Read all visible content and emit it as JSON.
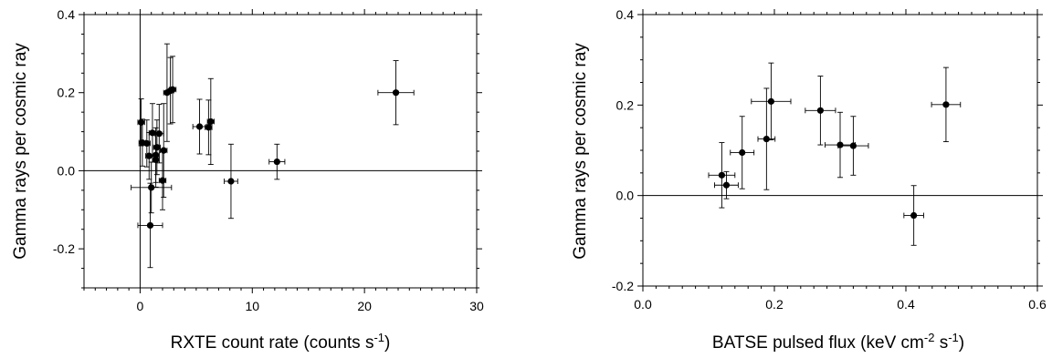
{
  "chart_data": [
    {
      "type": "scatter",
      "xlabel": "RXTE count rate (counts s-1)",
      "xlabel_parts": {
        "main": "RXTE count rate (counts s",
        "sup": "-1",
        "close": ")"
      },
      "ylabel": "Gamma rays per cosmic ray",
      "xlim": [
        -5,
        30
      ],
      "ylim": [
        -0.3,
        0.4
      ],
      "xticks": [
        0,
        10,
        20,
        30
      ],
      "xtick_labels": [
        "0",
        "10",
        "20",
        "30"
      ],
      "yticks": [
        -0.2,
        0.0,
        0.2,
        0.4
      ],
      "ytick_labels": [
        "-0.2",
        "0.0",
        "0.2",
        "0.4"
      ],
      "x_minor_step": 1,
      "y_minor_step": 0.05,
      "reference_lines": {
        "x": 0,
        "y": 0
      },
      "points": [
        {
          "x": 0.1,
          "y": 0.124,
          "xerr": 0.3,
          "yerr": 0.06
        },
        {
          "x": 0.2,
          "y": 0.072,
          "xerr": 0.3,
          "yerr": 0.06
        },
        {
          "x": 0.6,
          "y": 0.07,
          "xerr": 0.3,
          "yerr": 0.06
        },
        {
          "x": 0.8,
          "y": 0.038,
          "xerr": 0.3,
          "yerr": 0.06
        },
        {
          "x": 0.9,
          "y": -0.14,
          "xerr": 1.1,
          "yerr": 0.108
        },
        {
          "x": 1.0,
          "y": -0.043,
          "xerr": 1.8,
          "yerr": 0.065
        },
        {
          "x": 1.1,
          "y": 0.097,
          "xerr": 0.3,
          "yerr": 0.075
        },
        {
          "x": 1.4,
          "y": 0.028,
          "xerr": 0.3,
          "yerr": 0.07
        },
        {
          "x": 1.4,
          "y": 0.04,
          "xerr": 0.3,
          "yerr": 0.07
        },
        {
          "x": 1.5,
          "y": 0.06,
          "xerr": 0.3,
          "yerr": 0.07
        },
        {
          "x": 1.7,
          "y": 0.095,
          "xerr": 0.4,
          "yerr": 0.075
        },
        {
          "x": 2.0,
          "y": -0.025,
          "xerr": 0.3,
          "yerr": 0.075
        },
        {
          "x": 2.1,
          "y": 0.052,
          "xerr": 0.3,
          "yerr": 0.12
        },
        {
          "x": 2.4,
          "y": 0.2,
          "xerr": 0.3,
          "yerr": 0.125
        },
        {
          "x": 2.7,
          "y": 0.205,
          "xerr": 0.3,
          "yerr": 0.085
        },
        {
          "x": 2.9,
          "y": 0.208,
          "xerr": 0.3,
          "yerr": 0.085
        },
        {
          "x": 5.3,
          "y": 0.113,
          "xerr": 0.6,
          "yerr": 0.07
        },
        {
          "x": 6.1,
          "y": 0.111,
          "xerr": 0.3,
          "yerr": 0.07
        },
        {
          "x": 6.3,
          "y": 0.126,
          "xerr": 0.3,
          "yerr": 0.11
        },
        {
          "x": 8.1,
          "y": -0.027,
          "xerr": 0.6,
          "yerr": 0.095
        },
        {
          "x": 12.2,
          "y": 0.023,
          "xerr": 0.7,
          "yerr": 0.045
        },
        {
          "x": 22.8,
          "y": 0.2,
          "xerr": 1.6,
          "yerr": 0.082
        }
      ]
    },
    {
      "type": "scatter",
      "xlabel": "BATSE pulsed flux (keV cm-2 s-1)",
      "xlabel_parts": {
        "main": "BATSE pulsed flux (keV cm",
        "sup": "-2",
        "mid": " s",
        "sup2": "-1",
        "close": ")"
      },
      "ylabel": "Gamma rays per cosmic ray",
      "xlim": [
        0.0,
        0.6
      ],
      "ylim": [
        -0.2,
        0.4
      ],
      "xticks": [
        0.0,
        0.2,
        0.4,
        0.6
      ],
      "xtick_labels": [
        "0.0",
        "0.2",
        "0.4",
        "0.6"
      ],
      "yticks": [
        -0.2,
        0.0,
        0.2,
        0.4
      ],
      "ytick_labels": [
        "-0.2",
        "0.0",
        "0.2",
        "0.4"
      ],
      "x_minor_step": 0.02,
      "y_minor_step": 0.05,
      "reference_lines": {
        "y": 0
      },
      "points": [
        {
          "x": 0.12,
          "y": 0.045,
          "xerr": 0.02,
          "yerr": 0.072
        },
        {
          "x": 0.127,
          "y": 0.023,
          "xerr": 0.018,
          "yerr": 0.03
        },
        {
          "x": 0.151,
          "y": 0.095,
          "xerr": 0.018,
          "yerr": 0.08
        },
        {
          "x": 0.188,
          "y": 0.125,
          "xerr": 0.013,
          "yerr": 0.112
        },
        {
          "x": 0.195,
          "y": 0.208,
          "xerr": 0.03,
          "yerr": 0.085
        },
        {
          "x": 0.27,
          "y": 0.188,
          "xerr": 0.023,
          "yerr": 0.076
        },
        {
          "x": 0.3,
          "y": 0.112,
          "xerr": 0.023,
          "yerr": 0.072
        },
        {
          "x": 0.32,
          "y": 0.11,
          "xerr": 0.023,
          "yerr": 0.065
        },
        {
          "x": 0.412,
          "y": -0.044,
          "xerr": 0.015,
          "yerr": 0.066
        },
        {
          "x": 0.461,
          "y": 0.201,
          "xerr": 0.022,
          "yerr": 0.082
        }
      ]
    }
  ]
}
